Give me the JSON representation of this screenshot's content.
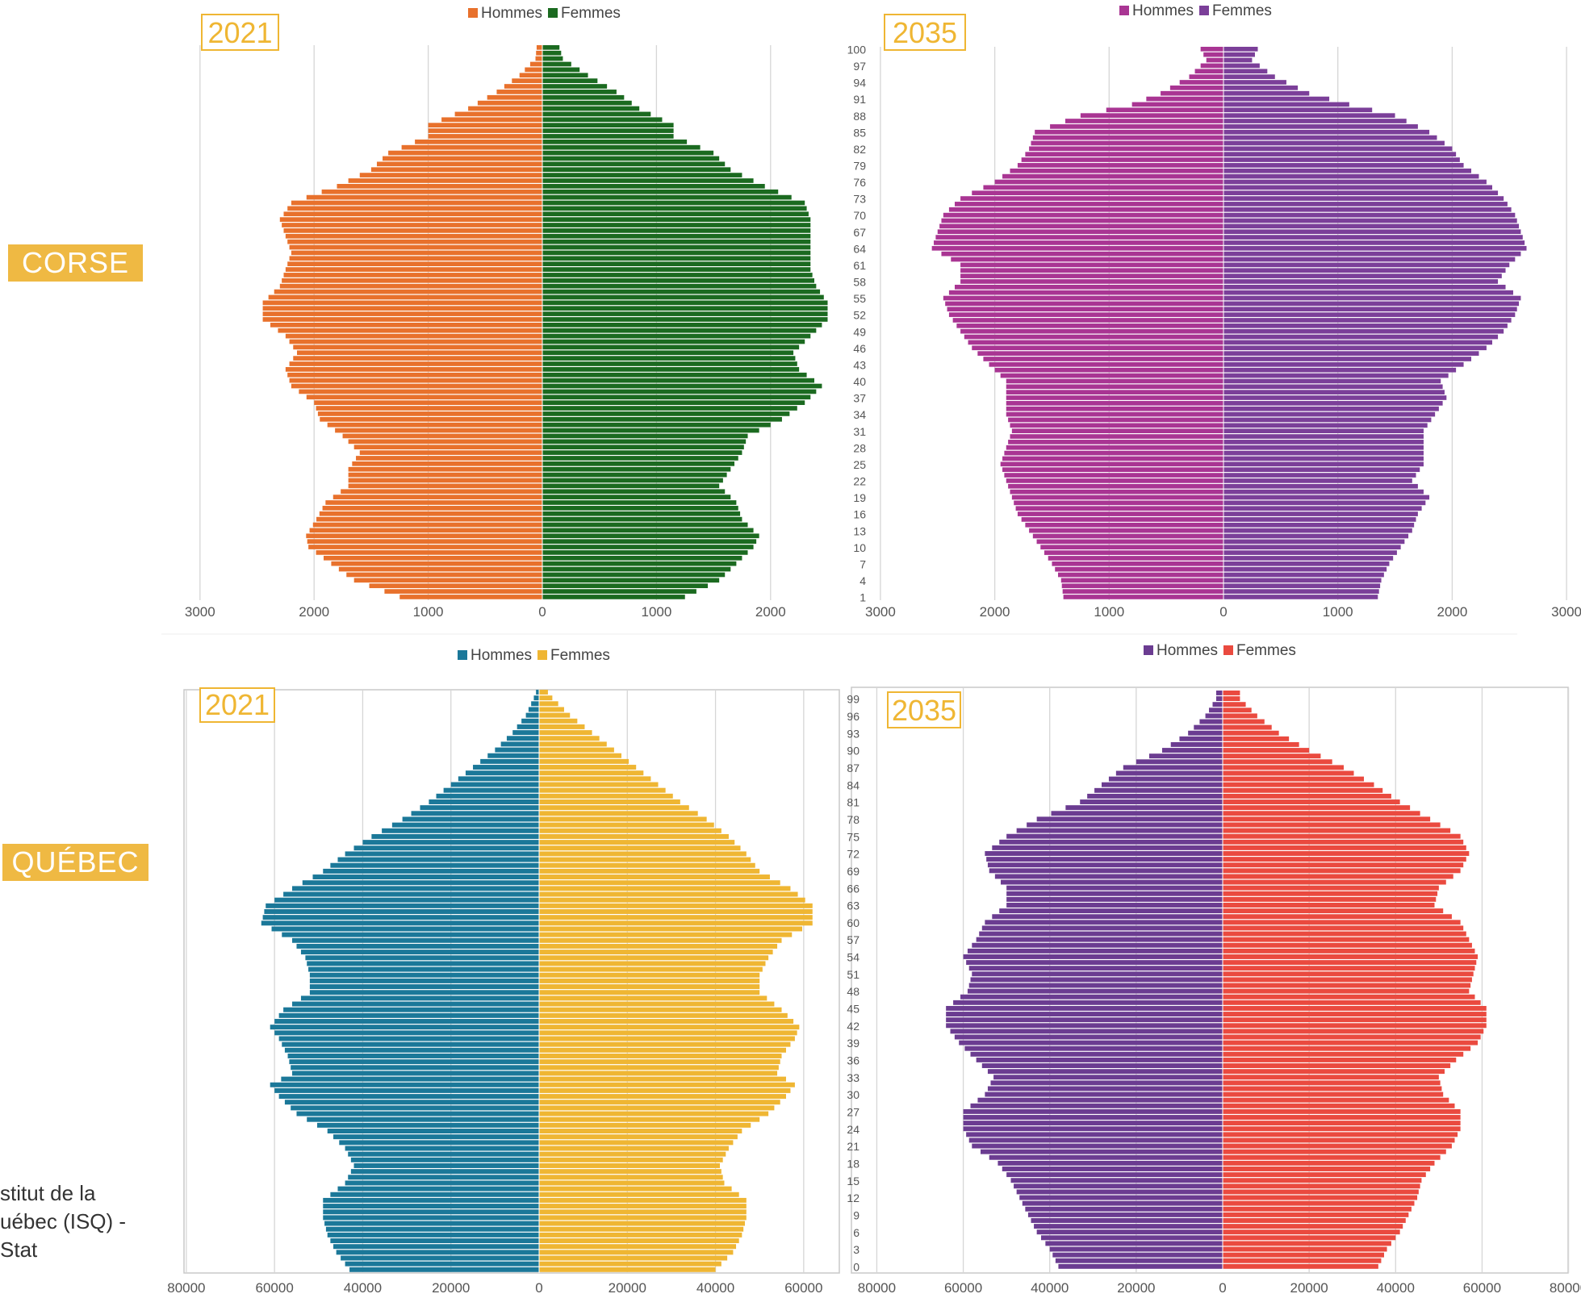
{
  "regions": [
    "CORSE",
    "QUÉBEC"
  ],
  "source_lines": [
    "stitut de la",
    "uébec (ISQ) -",
    "Stat"
  ],
  "chart_data": [
    {
      "type": "bar",
      "title": "2021",
      "region": "CORSE",
      "series": [
        {
          "name": "Hommes",
          "color": "#e8712c"
        },
        {
          "name": "Femmes",
          "color": "#1b6a20"
        }
      ],
      "age_min": 1,
      "age_max": 100,
      "age_tick_labels": [],
      "xlim": [
        -3000,
        3000
      ],
      "xticks": [
        -3000,
        -2000,
        -1000,
        0,
        1000,
        2000
      ],
      "xtick_labels": [
        "3000",
        "2000",
        "1000",
        "0",
        "1000",
        "2000"
      ],
      "grid": true,
      "legend": "top",
      "hommes_profile": [
        [
          1,
          1250
        ],
        [
          4,
          1650
        ],
        [
          7,
          1850
        ],
        [
          10,
          2050
        ],
        [
          12,
          2070
        ],
        [
          15,
          1980
        ],
        [
          18,
          1900
        ],
        [
          21,
          1700
        ],
        [
          24,
          1700
        ],
        [
          27,
          1600
        ],
        [
          30,
          1750
        ],
        [
          33,
          1950
        ],
        [
          36,
          2000
        ],
        [
          39,
          2200
        ],
        [
          42,
          2250
        ],
        [
          45,
          2150
        ],
        [
          48,
          2250
        ],
        [
          51,
          2450
        ],
        [
          54,
          2450
        ],
        [
          57,
          2300
        ],
        [
          60,
          2250
        ],
        [
          63,
          2200
        ],
        [
          66,
          2250
        ],
        [
          69,
          2300
        ],
        [
          72,
          2200
        ],
        [
          75,
          1800
        ],
        [
          78,
          1500
        ],
        [
          81,
          1350
        ],
        [
          84,
          1000
        ],
        [
          86,
          1000
        ],
        [
          89,
          650
        ],
        [
          92,
          400
        ],
        [
          95,
          200
        ],
        [
          98,
          60
        ],
        [
          100,
          50
        ]
      ],
      "femmes_profile": [
        [
          1,
          1250
        ],
        [
          4,
          1550
        ],
        [
          7,
          1700
        ],
        [
          10,
          1850
        ],
        [
          12,
          1900
        ],
        [
          15,
          1750
        ],
        [
          18,
          1700
        ],
        [
          21,
          1550
        ],
        [
          24,
          1650
        ],
        [
          27,
          1750
        ],
        [
          30,
          1800
        ],
        [
          33,
          2100
        ],
        [
          36,
          2300
        ],
        [
          39,
          2450
        ],
        [
          42,
          2250
        ],
        [
          45,
          2200
        ],
        [
          48,
          2350
        ],
        [
          51,
          2500
        ],
        [
          54,
          2500
        ],
        [
          57,
          2400
        ],
        [
          60,
          2350
        ],
        [
          63,
          2350
        ],
        [
          66,
          2350
        ],
        [
          69,
          2350
        ],
        [
          72,
          2300
        ],
        [
          75,
          1950
        ],
        [
          78,
          1650
        ],
        [
          81,
          1500
        ],
        [
          84,
          1150
        ],
        [
          86,
          1150
        ],
        [
          89,
          850
        ],
        [
          92,
          650
        ],
        [
          95,
          400
        ],
        [
          98,
          180
        ],
        [
          100,
          150
        ]
      ]
    },
    {
      "type": "bar",
      "title": "2035",
      "series": [
        {
          "name": "Hommes",
          "color": "#a93593"
        },
        {
          "name": "Femmes",
          "color": "#7b3f99"
        }
      ],
      "age_min": 1,
      "age_max": 100,
      "age_tick_labels": [
        "1",
        "4",
        "7",
        "10",
        "13",
        "16",
        "19",
        "22",
        "25",
        "28",
        "31",
        "34",
        "37",
        "40",
        "43",
        "46",
        "49",
        "52",
        "55",
        "58",
        "61",
        "64",
        "67",
        "70",
        "73",
        "76",
        "79",
        "82",
        "85",
        "88",
        "91",
        "94",
        "97",
        "100"
      ],
      "xlim": [
        -3000,
        3000
      ],
      "xticks": [
        -3000,
        -2000,
        -1000,
        0,
        1000,
        2000,
        3000
      ],
      "xtick_labels": [
        "3000",
        "2000",
        "1000",
        "0",
        "1000",
        "2000",
        "3000"
      ],
      "grid": true,
      "legend": "top",
      "hommes_profile": [
        [
          1,
          1400
        ],
        [
          4,
          1420
        ],
        [
          7,
          1500
        ],
        [
          10,
          1600
        ],
        [
          13,
          1700
        ],
        [
          16,
          1800
        ],
        [
          19,
          1850
        ],
        [
          22,
          1900
        ],
        [
          25,
          1950
        ],
        [
          28,
          1900
        ],
        [
          31,
          1850
        ],
        [
          34,
          1900
        ],
        [
          37,
          1900
        ],
        [
          40,
          1900
        ],
        [
          43,
          2050
        ],
        [
          46,
          2200
        ],
        [
          49,
          2300
        ],
        [
          52,
          2400
        ],
        [
          55,
          2450
        ],
        [
          58,
          2300
        ],
        [
          61,
          2300
        ],
        [
          64,
          2550
        ],
        [
          67,
          2500
        ],
        [
          70,
          2450
        ],
        [
          73,
          2300
        ],
        [
          76,
          2000
        ],
        [
          79,
          1800
        ],
        [
          82,
          1700
        ],
        [
          85,
          1650
        ],
        [
          88,
          1250
        ],
        [
          90,
          800
        ],
        [
          92,
          550
        ],
        [
          95,
          300
        ],
        [
          98,
          150
        ],
        [
          100,
          200
        ]
      ],
      "femmes_profile": [
        [
          1,
          1350
        ],
        [
          4,
          1380
        ],
        [
          7,
          1450
        ],
        [
          10,
          1550
        ],
        [
          13,
          1650
        ],
        [
          16,
          1700
        ],
        [
          19,
          1800
        ],
        [
          22,
          1650
        ],
        [
          25,
          1750
        ],
        [
          28,
          1750
        ],
        [
          31,
          1750
        ],
        [
          34,
          1850
        ],
        [
          37,
          1950
        ],
        [
          40,
          1900
        ],
        [
          43,
          2100
        ],
        [
          46,
          2300
        ],
        [
          49,
          2450
        ],
        [
          52,
          2550
        ],
        [
          55,
          2600
        ],
        [
          58,
          2400
        ],
        [
          61,
          2500
        ],
        [
          64,
          2650
        ],
        [
          67,
          2600
        ],
        [
          70,
          2550
        ],
        [
          73,
          2450
        ],
        [
          76,
          2300
        ],
        [
          79,
          2100
        ],
        [
          82,
          2000
        ],
        [
          85,
          1800
        ],
        [
          88,
          1500
        ],
        [
          90,
          1100
        ],
        [
          92,
          750
        ],
        [
          95,
          450
        ],
        [
          98,
          250
        ],
        [
          100,
          300
        ]
      ]
    },
    {
      "type": "bar",
      "title": "2021",
      "region": "QUÉBEC",
      "series": [
        {
          "name": "Hommes",
          "color": "#1b7899"
        },
        {
          "name": "Femmes",
          "color": "#efb633"
        }
      ],
      "age_min": 0,
      "age_max": 100,
      "age_tick_labels": [],
      "xlim": [
        -80000,
        80000
      ],
      "xticks": [
        -80000,
        -60000,
        -40000,
        -20000,
        0,
        20000,
        40000,
        60000
      ],
      "xtick_labels": [
        "80000",
        "60000",
        "40000",
        "20000",
        "0",
        "20000",
        "40000",
        "60000"
      ],
      "grid": true,
      "legend": "top",
      "hommes_profile": [
        [
          0,
          43000
        ],
        [
          3,
          46000
        ],
        [
          6,
          48000
        ],
        [
          9,
          49000
        ],
        [
          12,
          49000
        ],
        [
          15,
          44000
        ],
        [
          18,
          42000
        ],
        [
          21,
          44000
        ],
        [
          24,
          48000
        ],
        [
          27,
          55000
        ],
        [
          30,
          59000
        ],
        [
          32,
          61000
        ],
        [
          34,
          56000
        ],
        [
          37,
          57000
        ],
        [
          40,
          59000
        ],
        [
          42,
          61000
        ],
        [
          45,
          58000
        ],
        [
          48,
          52000
        ],
        [
          51,
          52000
        ],
        [
          54,
          53000
        ],
        [
          57,
          56000
        ],
        [
          60,
          63000
        ],
        [
          63,
          62000
        ],
        [
          66,
          56000
        ],
        [
          69,
          49000
        ],
        [
          72,
          44000
        ],
        [
          75,
          38000
        ],
        [
          78,
          31000
        ],
        [
          81,
          25000
        ],
        [
          84,
          20000
        ],
        [
          87,
          15000
        ],
        [
          90,
          10000
        ],
        [
          93,
          6000
        ],
        [
          96,
          3000
        ],
        [
          99,
          1200
        ],
        [
          100,
          700
        ]
      ],
      "femmes_profile": [
        [
          0,
          40000
        ],
        [
          3,
          44000
        ],
        [
          6,
          46000
        ],
        [
          9,
          47000
        ],
        [
          12,
          47000
        ],
        [
          15,
          42000
        ],
        [
          18,
          41000
        ],
        [
          21,
          43000
        ],
        [
          24,
          46000
        ],
        [
          27,
          52000
        ],
        [
          30,
          56000
        ],
        [
          32,
          58000
        ],
        [
          34,
          54000
        ],
        [
          37,
          55000
        ],
        [
          40,
          58000
        ],
        [
          42,
          59000
        ],
        [
          45,
          55000
        ],
        [
          48,
          50000
        ],
        [
          51,
          50000
        ],
        [
          54,
          52000
        ],
        [
          57,
          55000
        ],
        [
          60,
          62000
        ],
        [
          63,
          62000
        ],
        [
          66,
          57000
        ],
        [
          69,
          50000
        ],
        [
          72,
          47000
        ],
        [
          75,
          43000
        ],
        [
          78,
          38000
        ],
        [
          81,
          32000
        ],
        [
          84,
          27000
        ],
        [
          87,
          22000
        ],
        [
          90,
          17000
        ],
        [
          93,
          12000
        ],
        [
          96,
          7000
        ],
        [
          99,
          3000
        ],
        [
          100,
          2000
        ]
      ]
    },
    {
      "type": "bar",
      "title": "2035",
      "series": [
        {
          "name": "Hommes",
          "color": "#6b3c91"
        },
        {
          "name": "Femmes",
          "color": "#ea4a3f"
        }
      ],
      "age_min": 0,
      "age_max": 100,
      "age_tick_labels": [
        "0",
        "3",
        "6",
        "9",
        "12",
        "15",
        "18",
        "21",
        "24",
        "27",
        "30",
        "33",
        "36",
        "39",
        "42",
        "45",
        "48",
        "51",
        "54",
        "57",
        "60",
        "63",
        "66",
        "69",
        "72",
        "75",
        "78",
        "81",
        "84",
        "87",
        "90",
        "93",
        "96",
        "99"
      ],
      "xlim": [
        -80000,
        80000
      ],
      "xticks": [
        -80000,
        -60000,
        -40000,
        -20000,
        0,
        20000,
        40000,
        60000,
        80000
      ],
      "xtick_labels": [
        "80000",
        "60000",
        "40000",
        "20000",
        "0",
        "20000",
        "40000",
        "60000",
        "80000"
      ],
      "grid": true,
      "legend": "top",
      "hommes_profile": [
        [
          0,
          38000
        ],
        [
          3,
          40000
        ],
        [
          6,
          43000
        ],
        [
          9,
          45000
        ],
        [
          12,
          47000
        ],
        [
          15,
          49000
        ],
        [
          18,
          52000
        ],
        [
          21,
          58000
        ],
        [
          24,
          60000
        ],
        [
          27,
          60000
        ],
        [
          30,
          55000
        ],
        [
          33,
          53000
        ],
        [
          36,
          57000
        ],
        [
          39,
          61000
        ],
        [
          42,
          64000
        ],
        [
          45,
          64000
        ],
        [
          48,
          59000
        ],
        [
          51,
          58000
        ],
        [
          54,
          60000
        ],
        [
          57,
          57000
        ],
        [
          60,
          55000
        ],
        [
          63,
          50000
        ],
        [
          66,
          50000
        ],
        [
          69,
          54000
        ],
        [
          72,
          55000
        ],
        [
          75,
          50000
        ],
        [
          78,
          43000
        ],
        [
          81,
          33000
        ],
        [
          84,
          28000
        ],
        [
          87,
          23000
        ],
        [
          90,
          14000
        ],
        [
          93,
          8000
        ],
        [
          96,
          4000
        ],
        [
          99,
          1500
        ]
      ],
      "femmes_profile": [
        [
          0,
          36000
        ],
        [
          3,
          38000
        ],
        [
          6,
          41000
        ],
        [
          9,
          43000
        ],
        [
          12,
          45000
        ],
        [
          15,
          46000
        ],
        [
          18,
          49000
        ],
        [
          21,
          53000
        ],
        [
          24,
          55000
        ],
        [
          27,
          55000
        ],
        [
          30,
          51000
        ],
        [
          33,
          50000
        ],
        [
          36,
          54000
        ],
        [
          39,
          59000
        ],
        [
          42,
          61000
        ],
        [
          45,
          61000
        ],
        [
          48,
          57000
        ],
        [
          51,
          58000
        ],
        [
          54,
          59000
        ],
        [
          57,
          57000
        ],
        [
          60,
          55000
        ],
        [
          63,
          49000
        ],
        [
          66,
          50000
        ],
        [
          69,
          55000
        ],
        [
          72,
          57000
        ],
        [
          75,
          55000
        ],
        [
          78,
          48000
        ],
        [
          81,
          41000
        ],
        [
          84,
          35000
        ],
        [
          87,
          28000
        ],
        [
          90,
          20000
        ],
        [
          93,
          13000
        ],
        [
          96,
          8000
        ],
        [
          99,
          4000
        ]
      ]
    }
  ]
}
